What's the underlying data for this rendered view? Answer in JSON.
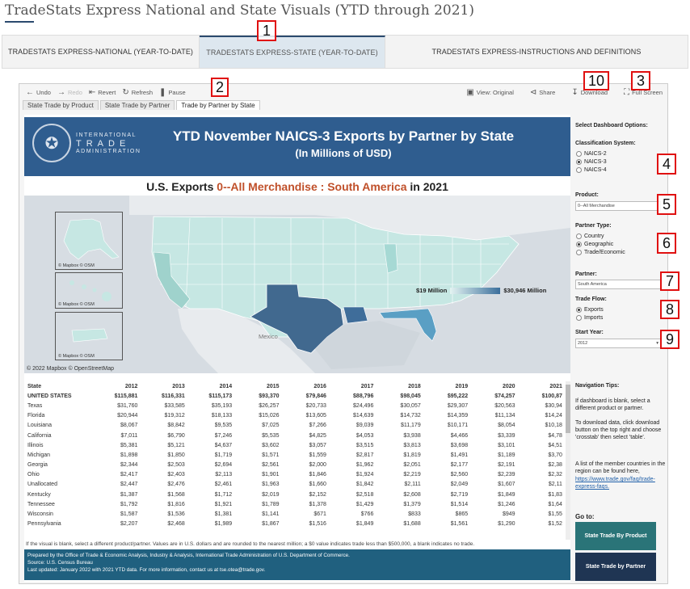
{
  "page_title": "TradeStats Express National and State Visuals (YTD through 2021)",
  "tabs": [
    {
      "label": "TRADESTATS EXPRESS-NATIONAL (YEAR-TO-DATE)"
    },
    {
      "label": "TRADESTATS EXPRESS-STATE (YEAR-TO-DATE)"
    },
    {
      "label": "TRADESTATS EXPRESS-INSTRUCTIONS AND DEFINITIONS"
    }
  ],
  "annotations": [
    "1",
    "2",
    "3",
    "4",
    "5",
    "6",
    "7",
    "8",
    "9",
    "10"
  ],
  "toolbar": {
    "undo": "Undo",
    "redo": "Redo",
    "revert": "Revert",
    "refresh": "Refresh",
    "pause": "Pause",
    "view": "View: Original",
    "share": "Share",
    "download": "Download",
    "fullscreen": "Full Screen"
  },
  "sheet_tabs": [
    "State Trade by Product",
    "State Trade by Partner",
    "Trade by Partner by State"
  ],
  "banner": {
    "ita_line1": "INTERNATIONAL",
    "ita_line2": "TRADE",
    "ita_line3": "ADMINISTRATION",
    "title": "YTD November NAICS-3 Exports by Partner by State",
    "subtitle": "(In Millions of USD)"
  },
  "headline": {
    "part1": "U.S. Exports ",
    "product": "0--All Merchandise : South America",
    "part2": " in 2021"
  },
  "map": {
    "legend_min": "$19 Million",
    "legend_max": "$30,946 Million",
    "mexico": "Mexico",
    "inset_copyright": "© Mapbox © OSM",
    "copyright": "© 2022 Mapbox © OpenStreetMap"
  },
  "table": {
    "headers": [
      "State",
      "2012",
      "2013",
      "2014",
      "2015",
      "2016",
      "2017",
      "2018",
      "2019",
      "2020",
      "2021"
    ],
    "rows": [
      [
        "UNITED STATES",
        "$115,881",
        "$116,331",
        "$115,173",
        "$93,370",
        "$79,846",
        "$88,796",
        "$98,045",
        "$95,222",
        "$74,257",
        "$100,87"
      ],
      [
        "Texas",
        "$31,760",
        "$33,585",
        "$35,193",
        "$26,257",
        "$20,733",
        "$24,496",
        "$30,057",
        "$29,307",
        "$20,563",
        "$30,94"
      ],
      [
        "Florida",
        "$20,944",
        "$19,312",
        "$18,133",
        "$15,026",
        "$13,605",
        "$14,639",
        "$14,732",
        "$14,359",
        "$11,134",
        "$14,24"
      ],
      [
        "Louisiana",
        "$8,067",
        "$8,842",
        "$9,535",
        "$7,025",
        "$7,266",
        "$9,039",
        "$11,179",
        "$10,171",
        "$8,054",
        "$10,18"
      ],
      [
        "California",
        "$7,011",
        "$6,790",
        "$7,246",
        "$5,535",
        "$4,825",
        "$4,053",
        "$3,938",
        "$4,466",
        "$3,339",
        "$4,78"
      ],
      [
        "Illinois",
        "$5,381",
        "$5,121",
        "$4,637",
        "$3,602",
        "$3,057",
        "$3,515",
        "$3,813",
        "$3,698",
        "$3,101",
        "$4,51"
      ],
      [
        "Michigan",
        "$1,898",
        "$1,850",
        "$1,719",
        "$1,571",
        "$1,559",
        "$2,817",
        "$1,819",
        "$1,491",
        "$1,189",
        "$3,70"
      ],
      [
        "Georgia",
        "$2,344",
        "$2,503",
        "$2,694",
        "$2,561",
        "$2,000",
        "$1,962",
        "$2,051",
        "$2,177",
        "$2,191",
        "$2,38"
      ],
      [
        "Ohio",
        "$2,417",
        "$2,403",
        "$2,113",
        "$1,901",
        "$1,846",
        "$1,924",
        "$2,219",
        "$2,560",
        "$2,239",
        "$2,32"
      ],
      [
        "Unallocated",
        "$2,447",
        "$2,476",
        "$2,461",
        "$1,963",
        "$1,660",
        "$1,842",
        "$2,111",
        "$2,049",
        "$1,607",
        "$2,11"
      ],
      [
        "Kentucky",
        "$1,387",
        "$1,568",
        "$1,712",
        "$2,019",
        "$2,152",
        "$2,518",
        "$2,608",
        "$2,719",
        "$1,849",
        "$1,83"
      ],
      [
        "Tennessee",
        "$1,792",
        "$1,816",
        "$1,921",
        "$1,789",
        "$1,378",
        "$1,429",
        "$1,379",
        "$1,514",
        "$1,246",
        "$1,64"
      ],
      [
        "Wisconsin",
        "$1,587",
        "$1,536",
        "$1,381",
        "$1,141",
        "$671",
        "$766",
        "$833",
        "$865",
        "$949",
        "$1,55"
      ],
      [
        "Pennsylvania",
        "$2,207",
        "$2,468",
        "$1,989",
        "$1,867",
        "$1,516",
        "$1,849",
        "$1,688",
        "$1,561",
        "$1,290",
        "$1,52"
      ]
    ]
  },
  "note": "If the visual is blank, select a different product/partner. Values are in U.S. dollars and are rounded to the nearest million; a $0 value indicates trade less than $500,000, a blank indicates no trade.",
  "footer": {
    "line1": "Prepared by the Office of Trade & Economic Analysis, Industry & Analysis, International Trade Administration of U.S. Department of Commerce.",
    "line2": "Source: U.S. Census Bureau",
    "line3": "Last updated: January 2022 with 2021 YTD data. For more information, contact us at tse.otea@trade.gov."
  },
  "side": {
    "options_heading": "Select Dashboard Options:",
    "classification_heading": "Classification System:",
    "classification_options": [
      "NAICS-2",
      "NAICS-3",
      "NAICS-4"
    ],
    "product_heading": "Product:",
    "product_value": "0--All Merchandise",
    "partner_type_heading": "Partner Type:",
    "partner_type_options": [
      "Country",
      "Geographic",
      "Trade/Economic"
    ],
    "partner_heading": "Partner:",
    "partner_value": "South America",
    "trade_flow_heading": "Trade Flow:",
    "trade_flow_options": [
      "Exports",
      "Imports"
    ],
    "start_year_heading": "Start Year:",
    "start_year_value": "2012",
    "nav_heading": "Navigation Tips:",
    "nav_tip1": "If dashboard is blank, select a different product or partner.",
    "nav_tip2": "To download data, click download button on the top right and choose 'crosstab' then select 'table'.",
    "nav_tip3": "A list of the member countries in the region can be found here,",
    "nav_link": "https://www.trade.gov/faq/trade-express-faqs.",
    "goto_heading": "Go to:",
    "btn_product": "State Trade By Product",
    "btn_partner": "State Trade by Partner"
  },
  "colors": {
    "banner": "#2f5d8f",
    "accent": "#c0502a",
    "footer": "#20607f",
    "btn_product": "#2a7478",
    "btn_partner": "#1f3553"
  }
}
